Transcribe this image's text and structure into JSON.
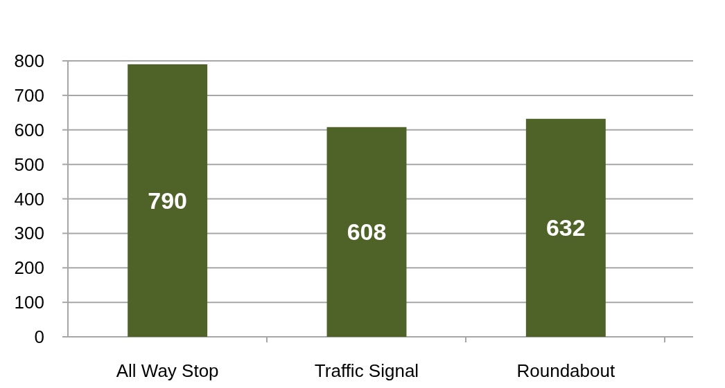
{
  "chart_data": {
    "type": "bar",
    "categories": [
      "All Way Stop",
      "Traffic Signal",
      "Roundabout"
    ],
    "values": [
      790,
      608,
      632
    ],
    "color": "#4f6228",
    "ylim": [
      0,
      800
    ],
    "yticks": [
      0,
      100,
      200,
      300,
      400,
      500,
      600,
      700,
      800
    ],
    "grid": "y",
    "data_labels": true
  }
}
